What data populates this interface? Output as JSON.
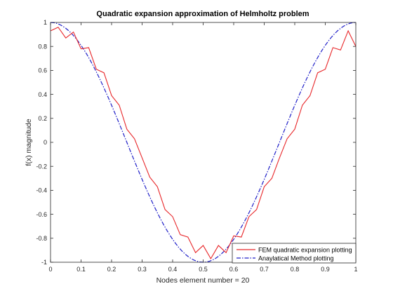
{
  "chart_data": {
    "type": "line",
    "title": "Quadratic expansion approximation of Helmholtz problem",
    "xlabel": "Nodes element number = 20",
    "ylabel": "f(x) magnitude",
    "xlim": [
      0,
      1
    ],
    "ylim": [
      -1,
      1
    ],
    "xticks": [
      0,
      0.1,
      0.2,
      0.3,
      0.4,
      0.5,
      0.6,
      0.7,
      0.8,
      0.9,
      1
    ],
    "xtick_labels": [
      "0",
      "0.1",
      "0.2",
      "0.3",
      "0.4",
      "0.5",
      "0.6",
      "0.7",
      "0.8",
      "0.9",
      "1"
    ],
    "yticks": [
      -1,
      -0.8,
      -0.6,
      -0.4,
      -0.2,
      0,
      0.2,
      0.4,
      0.6,
      0.8,
      1
    ],
    "ytick_labels": [
      "-1",
      "-0.8",
      "-0.6",
      "-0.4",
      "-0.2",
      "0",
      "0.2",
      "0.4",
      "0.6",
      "0.8",
      "1"
    ],
    "grid": false,
    "legend_position": "bottom-right",
    "series": [
      {
        "name": "FEM quadratic expansion plotting",
        "color": "#e8282b",
        "style": "solid",
        "x": [
          0,
          0.025,
          0.05,
          0.075,
          0.1,
          0.125,
          0.15,
          0.175,
          0.2,
          0.225,
          0.25,
          0.275,
          0.3,
          0.325,
          0.35,
          0.375,
          0.4,
          0.425,
          0.45,
          0.475,
          0.5,
          0.525,
          0.55,
          0.575,
          0.6,
          0.625,
          0.65,
          0.675,
          0.7,
          0.725,
          0.75,
          0.775,
          0.8,
          0.825,
          0.85,
          0.875,
          0.9,
          0.925,
          0.95,
          0.975,
          1
        ],
        "y": [
          0.93,
          0.96,
          0.87,
          0.92,
          0.78,
          0.79,
          0.61,
          0.58,
          0.39,
          0.31,
          0.11,
          0.03,
          -0.13,
          -0.29,
          -0.37,
          -0.56,
          -0.62,
          -0.77,
          -0.79,
          -0.92,
          -0.86,
          -0.97,
          -0.86,
          -0.92,
          -0.78,
          -0.79,
          -0.62,
          -0.56,
          -0.37,
          -0.3,
          -0.13,
          0.03,
          0.11,
          0.31,
          0.39,
          0.58,
          0.61,
          0.79,
          0.77,
          0.93,
          0.8
        ]
      },
      {
        "name": "Anaylatical Method plotting",
        "color": "#1f1fc8",
        "style": "dashdot",
        "function": "cos(2*pi*x)",
        "samples": 101
      }
    ]
  }
}
